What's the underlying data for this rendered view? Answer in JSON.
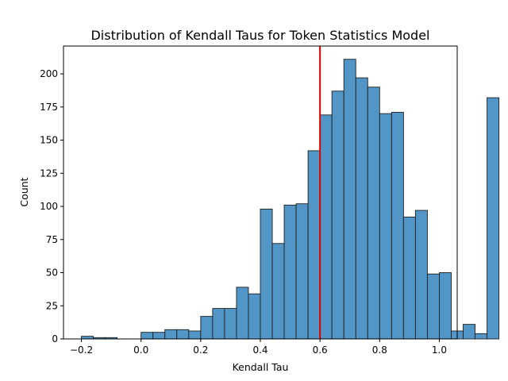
{
  "chart_data": {
    "type": "bar",
    "title": "Distribution of Kendall Taus for Token Statistics Model",
    "xlabel": "Kendall Tau",
    "ylabel": "Count",
    "xlim": [
      -0.26,
      1.06
    ],
    "ylim": [
      0,
      221
    ],
    "xticks": [
      -0.2,
      0.0,
      0.2,
      0.4,
      0.6,
      0.8,
      1.0
    ],
    "xtick_labels": [
      "−0.2",
      "0.0",
      "0.2",
      "0.4",
      "0.6",
      "0.8",
      "1.0"
    ],
    "yticks": [
      0,
      25,
      50,
      75,
      100,
      125,
      150,
      175,
      200
    ],
    "yticks_labels": [
      "0",
      "25",
      "50",
      "75",
      "100",
      "125",
      "150",
      "175",
      "200"
    ],
    "bin_start": -0.2,
    "bin_width": 0.04,
    "counts": [
      2,
      1,
      1,
      0,
      0,
      5,
      5,
      7,
      7,
      6,
      17,
      23,
      23,
      39,
      34,
      98,
      72,
      101,
      102,
      142,
      169,
      187,
      211,
      197,
      190,
      170,
      171,
      92,
      97,
      49,
      50,
      6,
      11,
      4,
      182
    ],
    "bar_color": "#5196c6",
    "edge_color": "#1f1f1f",
    "vline": {
      "x": 0.6,
      "color": "#e00000"
    },
    "grid": false,
    "legend": "none"
  }
}
